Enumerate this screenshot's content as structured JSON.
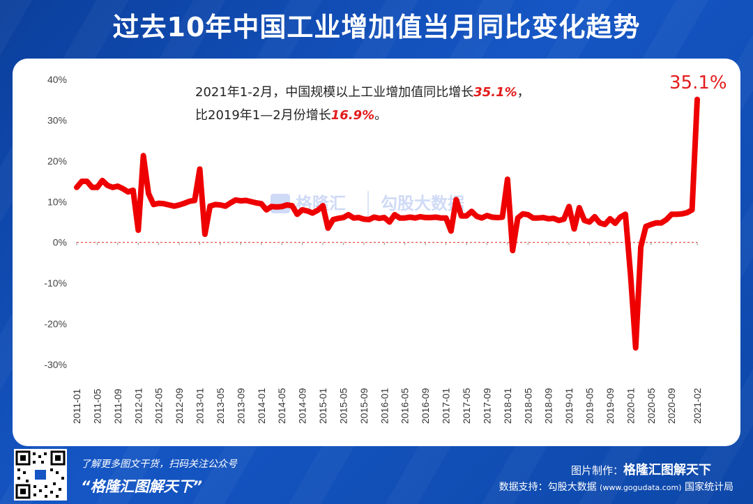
{
  "title": "过去10年中国工业增加值当月同比变化趋势",
  "annotation": {
    "line1_prefix": "2021年1-2月，中国规模以上工业增加值同比增长",
    "line1_value": "35.1%",
    "line1_suffix": "，",
    "line2_prefix": "比2019年1—2月份增长",
    "line2_value": "16.9%",
    "line2_suffix": "。"
  },
  "peak_label": "35.1%",
  "watermark": {
    "left": "格隆汇",
    "right": "勾股大数据"
  },
  "footer": {
    "tagline": "了解更多图文干货，扫码关注公众号",
    "account": "“格隆汇图解天下”",
    "made_by_label": "图片制作：",
    "made_by_brand": "格隆汇图解天下",
    "data_label": "数据支持：勾股大数据",
    "data_url": "(www.gogudata.com)",
    "data_source2": "国家统计局",
    "corner_logo": "格隆汇"
  },
  "colors": {
    "line": "#ee0000",
    "zero_line": "#e31b1b",
    "accent_text": "#e31b1b",
    "bg": "#1556c4"
  },
  "chart_data": {
    "type": "line",
    "ylim": [
      -30,
      40
    ],
    "y_ticks": [
      "-30%",
      "-20%",
      "-10%",
      "0%",
      "10%",
      "20%",
      "30%",
      "40%"
    ],
    "x_tick_labels": [
      "2011-01",
      "2011-05",
      "2011-09",
      "2012-01",
      "2012-05",
      "2012-09",
      "2013-01",
      "2013-05",
      "2013-09",
      "2014-01",
      "2014-05",
      "2014-09",
      "2015-01",
      "2015-05",
      "2015-09",
      "2016-01",
      "2016-05",
      "2016-09",
      "2017-01",
      "2017-05",
      "2017-09",
      "2018-01",
      "2018-05",
      "2018-09",
      "2019-01",
      "2019-05",
      "2019-09",
      "2020-01",
      "2020-05",
      "2020-09",
      "2021-02"
    ],
    "series": [
      {
        "x": [
          "2011-01",
          "2011-02",
          "2011-03",
          "2011-04",
          "2011-05",
          "2011-06",
          "2011-07",
          "2011-08",
          "2011-09",
          "2011-10",
          "2011-11",
          "2011-12",
          "2012-01",
          "2012-02",
          "2012-03",
          "2012-04",
          "2012-05",
          "2012-06",
          "2012-07",
          "2012-08",
          "2012-09",
          "2012-10",
          "2012-11",
          "2012-12",
          "2013-01",
          "2013-02",
          "2013-03",
          "2013-04",
          "2013-05",
          "2013-06",
          "2013-07",
          "2013-08",
          "2013-09",
          "2013-10",
          "2013-11",
          "2013-12",
          "2014-01",
          "2014-02",
          "2014-03",
          "2014-04",
          "2014-05",
          "2014-06",
          "2014-07",
          "2014-08",
          "2014-09",
          "2014-10",
          "2014-11",
          "2014-12",
          "2015-01",
          "2015-02",
          "2015-03",
          "2015-04",
          "2015-05",
          "2015-06",
          "2015-07",
          "2015-08",
          "2015-09",
          "2015-10",
          "2015-11",
          "2015-12",
          "2016-01",
          "2016-02",
          "2016-03",
          "2016-04",
          "2016-05",
          "2016-06",
          "2016-07",
          "2016-08",
          "2016-09",
          "2016-10",
          "2016-11",
          "2016-12",
          "2017-01",
          "2017-02",
          "2017-03",
          "2017-04",
          "2017-05",
          "2017-06",
          "2017-07",
          "2017-08",
          "2017-09",
          "2017-10",
          "2017-11",
          "2017-12",
          "2018-01",
          "2018-02",
          "2018-03",
          "2018-04",
          "2018-05",
          "2018-06",
          "2018-07",
          "2018-08",
          "2018-09",
          "2018-10",
          "2018-11",
          "2018-12",
          "2019-01",
          "2019-02",
          "2019-03",
          "2019-04",
          "2019-05",
          "2019-06",
          "2019-07",
          "2019-08",
          "2019-09",
          "2019-10",
          "2019-11",
          "2019-12",
          "2020-01",
          "2020-02",
          "2020-03",
          "2020-04",
          "2020-05",
          "2020-06",
          "2020-07",
          "2020-08",
          "2020-09",
          "2020-10",
          "2020-11",
          "2020-12",
          "2021-01",
          "2021-02"
        ],
        "values": [
          13.5,
          15.0,
          15.0,
          13.5,
          13.5,
          15.2,
          14.0,
          13.5,
          13.8,
          13.2,
          12.4,
          12.8,
          3.0,
          21.3,
          12.0,
          9.3,
          9.6,
          9.5,
          9.2,
          8.9,
          9.2,
          9.6,
          10.1,
          10.3,
          18.0,
          2.0,
          8.9,
          9.3,
          9.2,
          8.9,
          9.7,
          10.4,
          10.2,
          10.3,
          10.0,
          9.7,
          9.5,
          8.0,
          8.8,
          8.7,
          8.8,
          9.2,
          9.0,
          6.9,
          8.0,
          7.7,
          7.2,
          7.9,
          9.0,
          3.5,
          5.6,
          5.9,
          6.1,
          6.8,
          6.0,
          6.1,
          5.7,
          5.6,
          6.2,
          5.9,
          6.1,
          5.0,
          6.8,
          6.0,
          6.0,
          6.2,
          6.0,
          6.3,
          6.1,
          6.1,
          6.2,
          6.0,
          6.0,
          2.8,
          10.5,
          6.5,
          6.5,
          7.6,
          6.4,
          6.0,
          6.6,
          6.2,
          6.1,
          6.2,
          15.5,
          -2.0,
          6.0,
          7.0,
          6.8,
          6.0,
          6.0,
          6.1,
          5.8,
          5.9,
          5.4,
          5.7,
          8.8,
          3.3,
          8.5,
          5.4,
          5.0,
          6.3,
          4.8,
          4.4,
          5.8,
          4.7,
          6.2,
          6.9,
          -8.0,
          -25.9,
          -1.1,
          3.9,
          4.4,
          4.8,
          4.8,
          5.6,
          6.9,
          6.9,
          7.0,
          7.3,
          8.0,
          35.1
        ]
      }
    ]
  }
}
